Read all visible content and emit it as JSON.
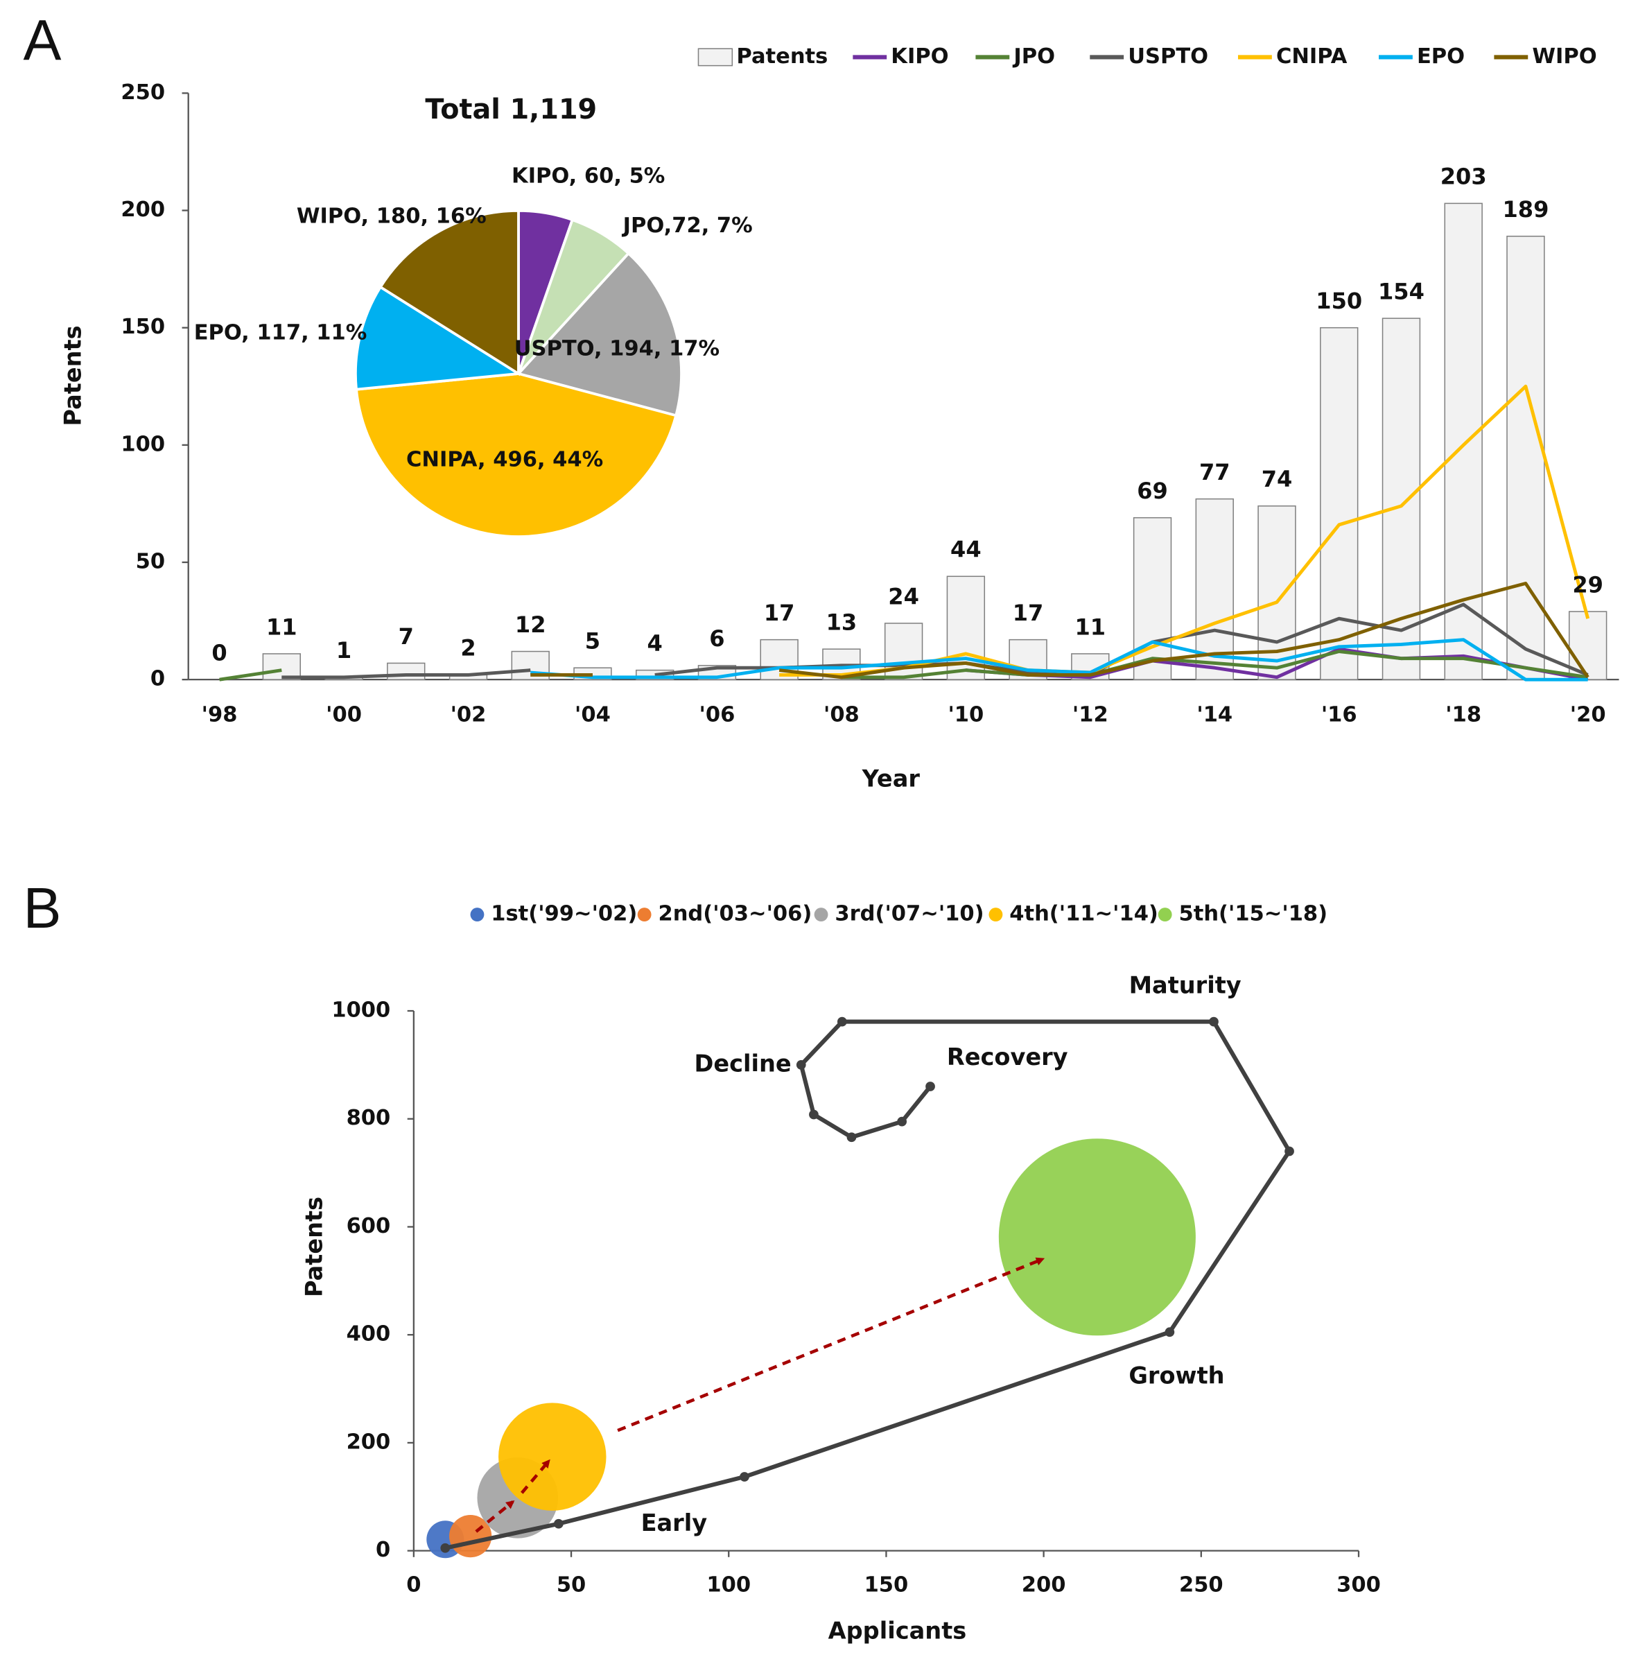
{
  "chart_data": [
    {
      "type": "bar",
      "panel_label": "A",
      "categories": [
        "'98",
        null,
        "'00",
        null,
        "'02",
        null,
        "'04",
        null,
        "'06",
        null,
        "'08",
        null,
        "'10",
        null,
        "'12",
        null,
        "'14",
        null,
        "'16",
        null,
        "'18",
        null,
        "'20"
      ],
      "series": [
        {
          "name": "Patents",
          "type": "bar",
          "color": "#f2f2f2",
          "values": [
            0,
            11,
            1,
            7,
            2,
            12,
            5,
            4,
            6,
            17,
            13,
            24,
            44,
            17,
            11,
            69,
            77,
            74,
            150,
            154,
            203,
            189,
            29
          ]
        },
        {
          "name": "KIPO",
          "type": "line",
          "color": "#7030a0",
          "values": [
            null,
            null,
            null,
            null,
            null,
            null,
            null,
            null,
            null,
            null,
            null,
            null,
            4,
            2,
            1,
            8,
            5,
            1,
            13,
            9,
            10,
            5,
            0
          ]
        },
        {
          "name": "JPO",
          "type": "line",
          "color": "#548235",
          "values": [
            0,
            4,
            null,
            null,
            null,
            null,
            null,
            null,
            null,
            null,
            1,
            1,
            4,
            2,
            2,
            9,
            7,
            5,
            12,
            9,
            9,
            5,
            1
          ]
        },
        {
          "name": "USPTO",
          "type": "line",
          "color": "#595959",
          "values": [
            null,
            1,
            1,
            2,
            2,
            4,
            null,
            2,
            5,
            5,
            6,
            6,
            7,
            3,
            2,
            16,
            21,
            16,
            26,
            21,
            32,
            13,
            2
          ]
        },
        {
          "name": "CNIPA",
          "type": "line",
          "color": "#ffc000",
          "values": [
            null,
            null,
            null,
            null,
            null,
            null,
            null,
            null,
            null,
            2,
            2,
            5,
            11,
            4,
            3,
            14,
            24,
            33,
            66,
            74,
            100,
            125,
            26
          ]
        },
        {
          "name": "EPO",
          "type": "line",
          "color": "#00b0f0",
          "values": [
            null,
            null,
            null,
            null,
            null,
            3,
            1,
            1,
            1,
            5,
            5,
            7,
            9,
            4,
            3,
            16,
            10,
            8,
            14,
            15,
            17,
            0,
            0
          ]
        },
        {
          "name": "WIPO",
          "type": "line",
          "color": "#7f6000",
          "values": [
            null,
            null,
            null,
            null,
            null,
            2,
            2,
            null,
            null,
            4,
            1,
            5,
            7,
            2,
            2,
            8,
            11,
            12,
            17,
            26,
            34,
            41,
            1
          ]
        }
      ],
      "xlabel": "Year",
      "ylabel": "Patents",
      "ylim": [
        0,
        250
      ],
      "yticks": [
        0,
        50,
        100,
        150,
        200,
        250
      ],
      "grid": false,
      "legend": "top-right",
      "data_labels": true
    },
    {
      "type": "pie",
      "title": "Total 1,119",
      "categories": [
        "KIPO",
        "JPO",
        "USPTO",
        "CNIPA",
        "EPO",
        "WIPO"
      ],
      "values": [
        60,
        72,
        194,
        496,
        117,
        180
      ],
      "value_labels": [
        "KIPO, 60, 5%",
        "JPO,72, 7%",
        "USPTO, 194, 17%",
        "CNIPA, 496, 44%",
        "EPO, 117, 11%",
        "WIPO, 180, 16%"
      ],
      "colors": [
        "#7030a0",
        "#c5e0b4",
        "#a6a6a6",
        "#ffc000",
        "#00b0f0",
        "#7f6000"
      ]
    },
    {
      "type": "bubble",
      "panel_label": "B",
      "series": [
        {
          "name": "1st('99~'02)",
          "color": "#4472c4",
          "x": [
            10
          ],
          "values": [
            21
          ],
          "sizes": [
            21
          ]
        },
        {
          "name": "2nd('03~'06)",
          "color": "#ed7d31",
          "x": [
            18
          ],
          "values": [
            27
          ],
          "sizes": [
            27
          ]
        },
        {
          "name": "3rd('07~'10)",
          "color": "#a5a5a5",
          "x": [
            33
          ],
          "values": [
            98
          ],
          "sizes": [
            98
          ]
        },
        {
          "name": "4th('11~'14)",
          "color": "#ffc000",
          "x": [
            44
          ],
          "values": [
            174
          ],
          "sizes": [
            174
          ]
        },
        {
          "name": "5th('15~'18)",
          "color": "#92d050",
          "x": [
            217
          ],
          "values": [
            581
          ],
          "sizes": [
            581
          ]
        }
      ],
      "cycle": {
        "color": "#404040",
        "x": [
          10,
          46,
          105,
          240,
          278,
          254,
          136,
          123,
          127,
          139,
          155,
          164
        ],
        "values": [
          5,
          50,
          137,
          405,
          740,
          980,
          980,
          900,
          808,
          766,
          795,
          860
        ]
      },
      "annotations": [
        "Early",
        "Growth",
        "Maturity",
        "Decline",
        "Recovery"
      ],
      "xlabel": "Applicants",
      "ylabel": "Patents",
      "xlim": [
        0,
        300
      ],
      "xticks": [
        0,
        50,
        100,
        150,
        200,
        250,
        300
      ],
      "ylim": [
        0,
        1000
      ],
      "yticks": [
        0,
        200,
        400,
        600,
        800,
        1000
      ],
      "grid": false,
      "legend": "top"
    }
  ]
}
